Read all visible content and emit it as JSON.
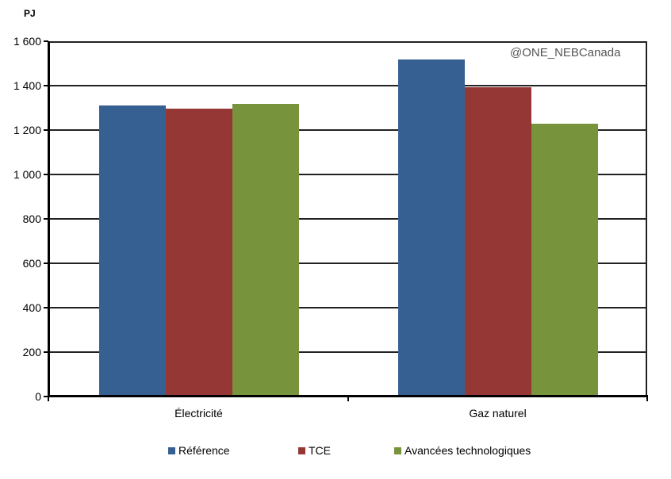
{
  "chart_data": {
    "type": "bar",
    "title": "",
    "xlabel": "",
    "ylabel": "PJ",
    "ylim": [
      0,
      1600
    ],
    "yticks": [
      0,
      200,
      400,
      600,
      800,
      1000,
      1200,
      1400,
      1600
    ],
    "ytick_labels": [
      "0",
      "200",
      "400",
      "600",
      "800",
      "1 000",
      "1 200",
      "1 400",
      "1 600"
    ],
    "grid": true,
    "legend_position": "bottom",
    "categories": [
      "Électricité",
      "Gaz naturel"
    ],
    "series": [
      {
        "name": "Référence",
        "color": "#376092",
        "values": [
          1311,
          1518
        ]
      },
      {
        "name": "TCE",
        "color": "#953735",
        "values": [
          1296,
          1393
        ]
      },
      {
        "name": "Avancées technologiques",
        "color": "#77933C",
        "values": [
          1318,
          1229
        ]
      }
    ],
    "annotations": [
      "@ONE_NEBCanada"
    ]
  },
  "unit_label": "PJ",
  "watermark": "@ONE_NEBCanada",
  "legend": [
    {
      "label": "Référence",
      "color": "#376092"
    },
    {
      "label": "TCE",
      "color": "#953735"
    },
    {
      "label": "Avancées technologiques",
      "color": "#77933C"
    }
  ]
}
